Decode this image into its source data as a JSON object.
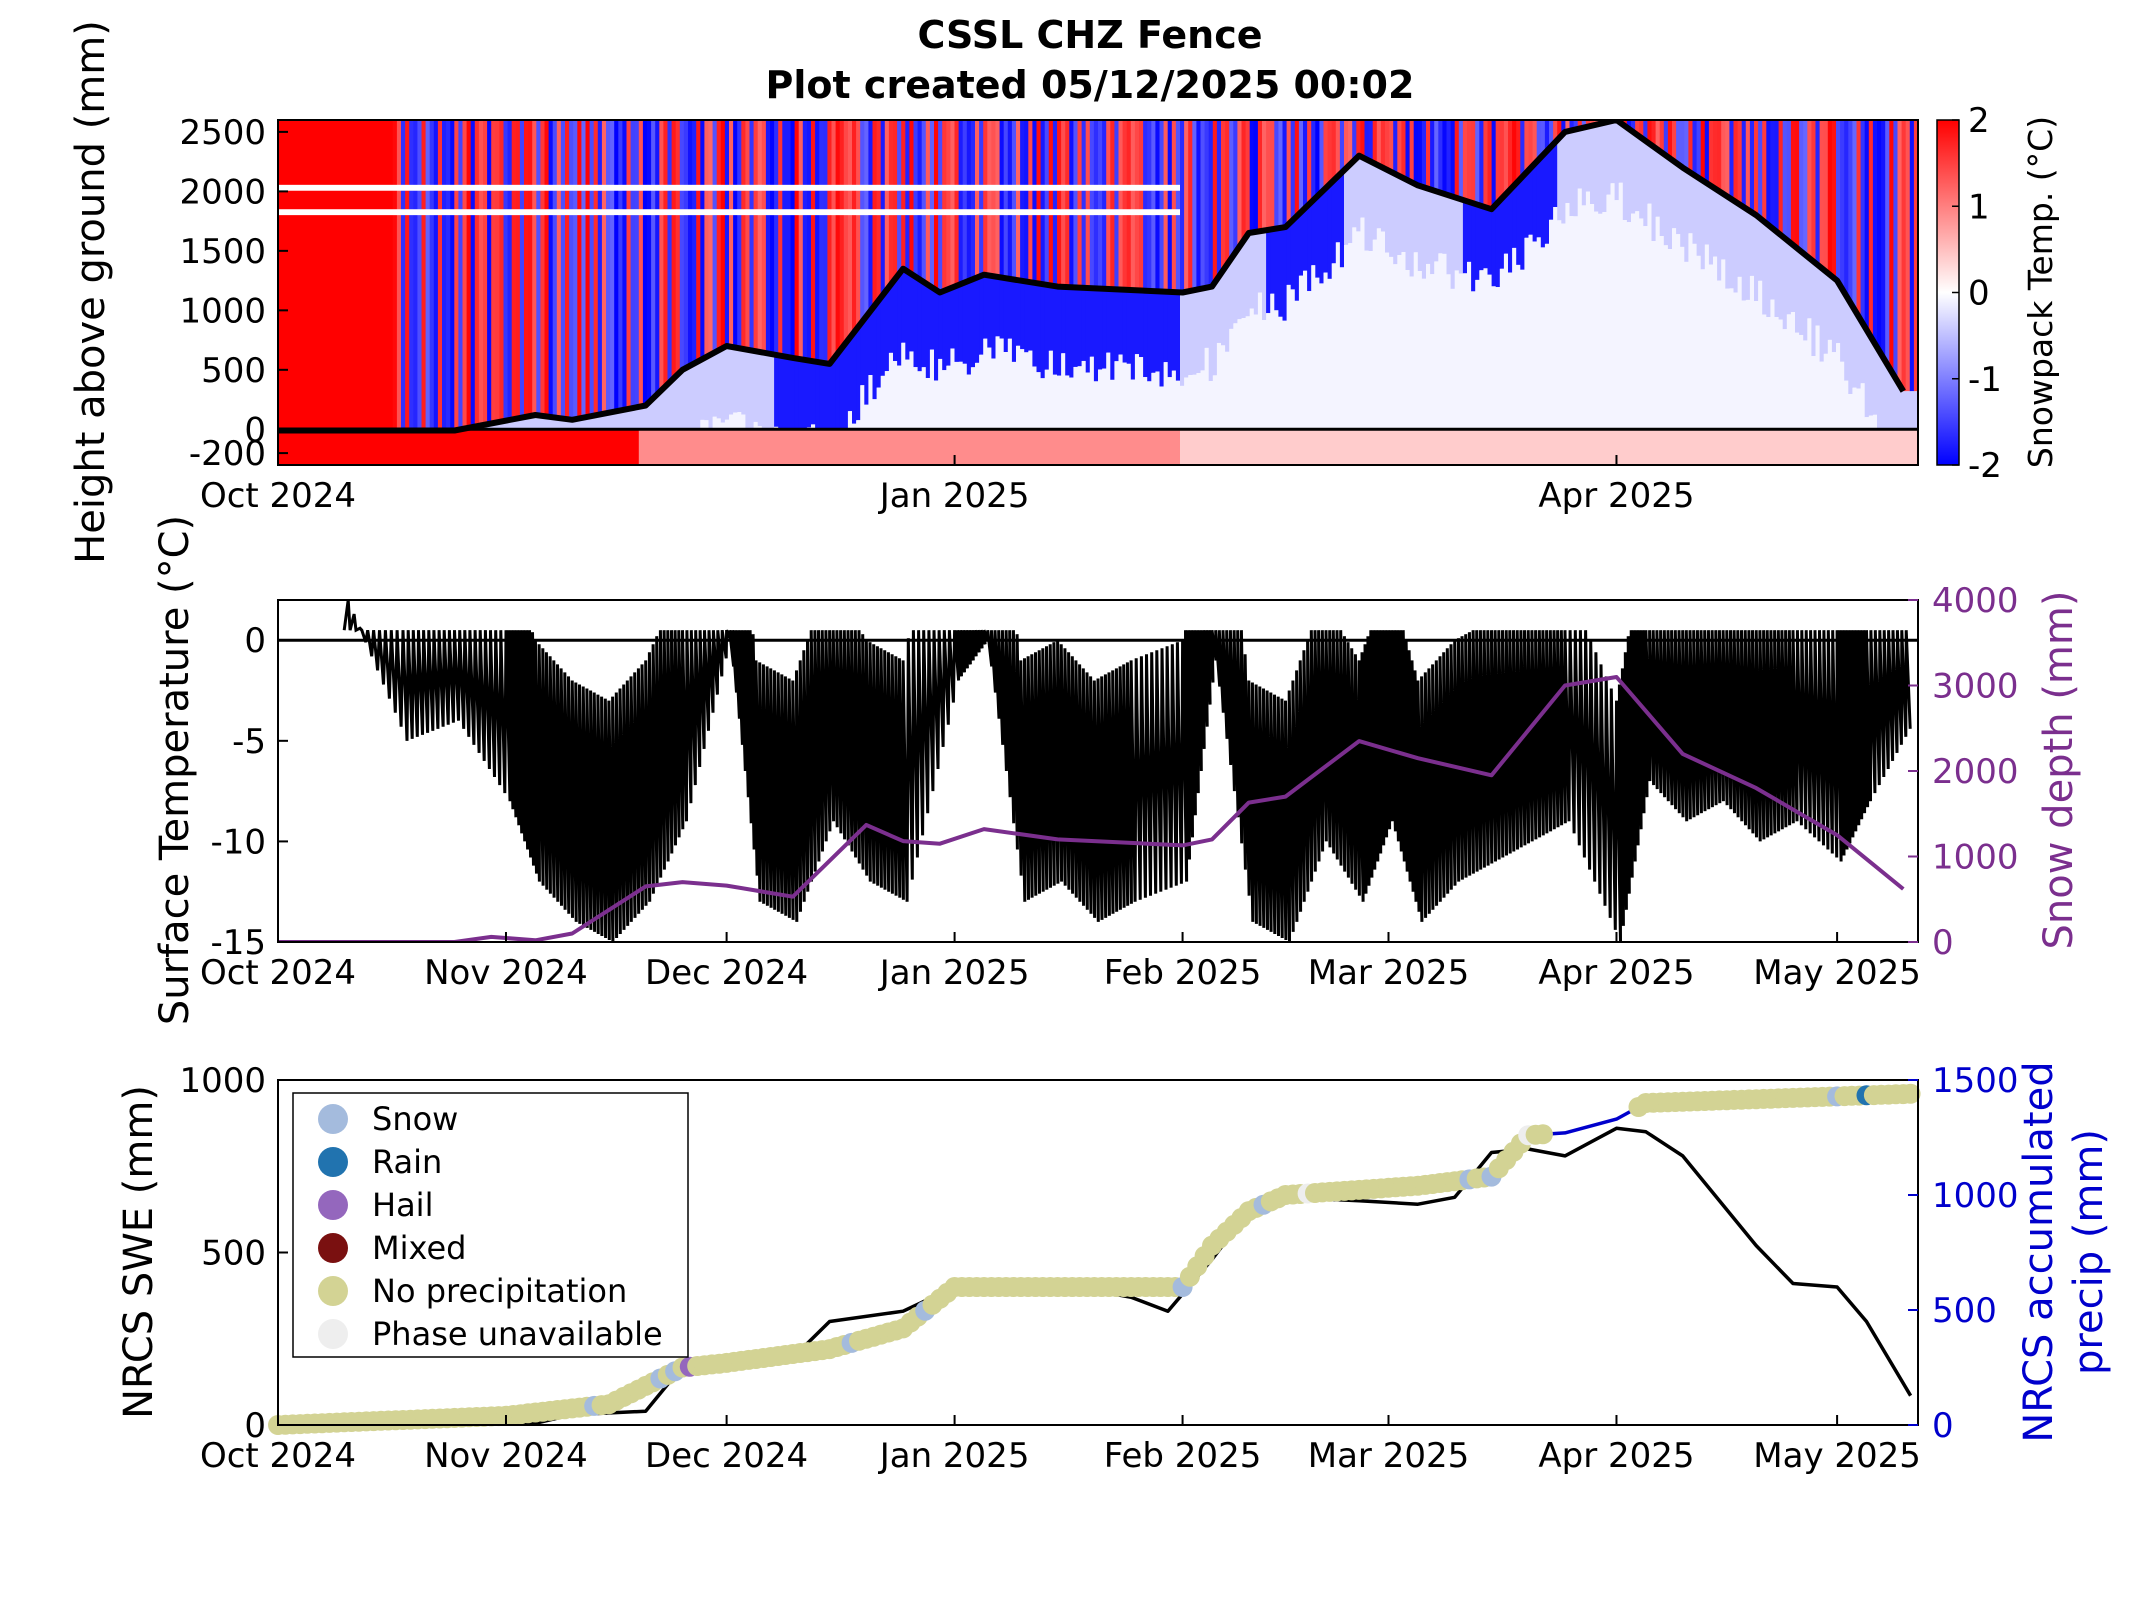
{
  "figure": {
    "title_line1": "CSSL CHZ Fence",
    "title_line2": "Plot created 05/12/2025 00:02"
  },
  "chart_data": [
    {
      "type": "heatmap",
      "name": "snowpack-temperature-profile",
      "ylabel": "Height above ground (mm)",
      "colorbar_label": "Snowpack Temp. (°C)",
      "colorbar_ticks": [
        2,
        1,
        0,
        -1,
        -2
      ],
      "clim": [
        -2,
        2
      ],
      "colors": {
        "warm": "#ff0000",
        "neutral": "#ffffff",
        "cold": "#0000ff"
      },
      "xlim": [
        "2024-10-01",
        "2025-05-12"
      ],
      "x_ticks": [
        {
          "date": "2024-10-01",
          "label": "Oct 2024"
        },
        {
          "date": "2025-01-01",
          "label": "Jan 2025"
        },
        {
          "date": "2025-04-01",
          "label": "Apr 2025"
        }
      ],
      "ylim": [
        -300,
        2600
      ],
      "y_ticks": [
        {
          "value": 2500,
          "label": "2500"
        },
        {
          "value": 2000,
          "label": "2000"
        },
        {
          "value": 1500,
          "label": "1500"
        },
        {
          "value": 1000,
          "label": "1000"
        },
        {
          "value": 500,
          "label": "500"
        },
        {
          "value": 0,
          "label": "0"
        },
        {
          "value": -200,
          "label": "-200"
        }
      ],
      "snow_depth_line": {
        "color": "#000000",
        "x": [
          "2024-10-01",
          "2024-10-25",
          "2024-11-05",
          "2024-11-10",
          "2024-11-20",
          "2024-11-25",
          "2024-12-01",
          "2024-12-10",
          "2024-12-15",
          "2024-12-25",
          "2024-12-30",
          "2025-01-05",
          "2025-01-15",
          "2025-02-01",
          "2025-02-05",
          "2025-02-10",
          "2025-02-15",
          "2025-02-25",
          "2025-03-05",
          "2025-03-15",
          "2025-03-25",
          "2025-04-01",
          "2025-04-10",
          "2025-04-20",
          "2025-05-01",
          "2025-05-10"
        ],
        "y": [
          -10,
          -10,
          120,
          80,
          200,
          500,
          700,
          600,
          550,
          1350,
          1150,
          1300,
          1200,
          1150,
          1200,
          1650,
          1700,
          2300,
          2050,
          1850,
          2500,
          2600,
          2200,
          1800,
          1250,
          320
        ]
      },
      "zero_line": {
        "value": 0,
        "color": "#000000"
      }
    },
    {
      "type": "line",
      "name": "surface-temperature",
      "ylabel": "Surface Temperature (°C)",
      "y2label": "Snow depth (mm)",
      "xlim": [
        "2024-10-01",
        "2025-05-12"
      ],
      "x_ticks": [
        {
          "date": "2024-10-01",
          "label": "Oct 2024"
        },
        {
          "date": "2024-11-01",
          "label": "Nov 2024"
        },
        {
          "date": "2024-12-01",
          "label": "Dec 2024"
        },
        {
          "date": "2025-01-01",
          "label": "Jan 2025"
        },
        {
          "date": "2025-02-01",
          "label": "Feb 2025"
        },
        {
          "date": "2025-03-01",
          "label": "Mar 2025"
        },
        {
          "date": "2025-04-01",
          "label": "Apr 2025"
        },
        {
          "date": "2025-05-01",
          "label": "May 2025"
        }
      ],
      "ylim": [
        -15,
        2
      ],
      "y_ticks": [
        {
          "value": 0,
          "label": "0"
        },
        {
          "value": -5,
          "label": "-5"
        },
        {
          "value": -10,
          "label": "-10"
        },
        {
          "value": -15,
          "label": "-15"
        }
      ],
      "y2lim": [
        0,
        4000
      ],
      "y2_ticks": [
        {
          "value": 4000,
          "label": "4000"
        },
        {
          "value": 3000,
          "label": "3000"
        },
        {
          "value": 2000,
          "label": "2000"
        },
        {
          "value": 1000,
          "label": "1000"
        },
        {
          "value": 0,
          "label": "0"
        }
      ],
      "y2_color": "#7b2f8e",
      "series": [
        {
          "axis": "left",
          "color": "#000000",
          "x": [
            "2024-10-10",
            "2024-10-18",
            "2024-10-25",
            "2024-11-01",
            "2024-11-05",
            "2024-11-10",
            "2024-11-15",
            "2024-11-20",
            "2024-11-25",
            "2024-12-01",
            "2024-12-05",
            "2024-12-10",
            "2024-12-15",
            "2024-12-20",
            "2024-12-25",
            "2025-01-01",
            "2025-01-05",
            "2025-01-10",
            "2025-01-15",
            "2025-01-20",
            "2025-01-25",
            "2025-02-01",
            "2025-02-05",
            "2025-02-10",
            "2025-02-15",
            "2025-02-20",
            "2025-02-25",
            "2025-03-01",
            "2025-03-05",
            "2025-03-10",
            "2025-03-15",
            "2025-03-20",
            "2025-03-25",
            "2025-04-01",
            "2025-04-05",
            "2025-04-10",
            "2025-04-15",
            "2025-04-20",
            "2025-04-25",
            "2025-05-01",
            "2025-05-05",
            "2025-05-11"
          ],
          "y": [
            2,
            -5,
            -4,
            -8,
            -12,
            -14,
            -15,
            -13,
            -9,
            0,
            -13,
            -14,
            -9,
            -12,
            -13,
            -2,
            0,
            -13,
            -12,
            -14,
            -13,
            -12,
            -1,
            -14,
            -15,
            -10,
            -13,
            -9,
            -14,
            -12,
            -11,
            -10,
            -9,
            -15,
            -7,
            -9,
            -8,
            -10,
            -9,
            -11,
            -8,
            -4
          ]
        },
        {
          "axis": "right",
          "color": "#7b2f8e",
          "x": [
            "2024-10-01",
            "2024-10-25",
            "2024-10-30",
            "2024-11-05",
            "2024-11-10",
            "2024-11-20",
            "2024-11-25",
            "2024-12-01",
            "2024-12-10",
            "2024-12-20",
            "2024-12-25",
            "2024-12-30",
            "2025-01-05",
            "2025-01-15",
            "2025-02-01",
            "2025-02-05",
            "2025-02-10",
            "2025-02-15",
            "2025-02-25",
            "2025-03-05",
            "2025-03-15",
            "2025-03-25",
            "2025-04-01",
            "2025-04-10",
            "2025-04-20",
            "2025-05-01",
            "2025-05-10"
          ],
          "y": [
            0,
            0,
            60,
            20,
            100,
            650,
            700,
            660,
            530,
            1370,
            1180,
            1150,
            1320,
            1200,
            1130,
            1200,
            1630,
            1700,
            2350,
            2150,
            1950,
            3000,
            3100,
            2200,
            1800,
            1250,
            620
          ]
        }
      ],
      "zero_line": {
        "value": 0,
        "color": "#000000"
      }
    },
    {
      "type": "scatter",
      "name": "nrcs-swe-precip",
      "ylabel": "NRCS SWE (mm)",
      "y2label_line1": "NRCS accumulated",
      "y2label_line2": "precip (mm)",
      "xlim": [
        "2024-10-01",
        "2025-05-12"
      ],
      "x_ticks": [
        {
          "date": "2024-10-01",
          "label": "Oct 2024"
        },
        {
          "date": "2024-11-01",
          "label": "Nov 2024"
        },
        {
          "date": "2024-12-01",
          "label": "Dec 2024"
        },
        {
          "date": "2025-01-01",
          "label": "Jan 2025"
        },
        {
          "date": "2025-02-01",
          "label": "Feb 2025"
        },
        {
          "date": "2025-03-01",
          "label": "Mar 2025"
        },
        {
          "date": "2025-04-01",
          "label": "Apr 2025"
        },
        {
          "date": "2025-05-01",
          "label": "May 2025"
        }
      ],
      "ylim": [
        0,
        1000
      ],
      "y_ticks": [
        {
          "value": 1000,
          "label": "1000"
        },
        {
          "value": 500,
          "label": "500"
        },
        {
          "value": 0,
          "label": "0"
        }
      ],
      "y2lim": [
        0,
        1500
      ],
      "y2_ticks": [
        {
          "value": 1500,
          "label": "1500"
        },
        {
          "value": 1000,
          "label": "1000"
        },
        {
          "value": 500,
          "label": "500"
        },
        {
          "value": 0,
          "label": "0"
        }
      ],
      "y2_color": "#0000cc",
      "swe_line": {
        "color": "#000000",
        "x": [
          "2024-10-01",
          "2024-10-20",
          "2024-11-05",
          "2024-11-10",
          "2024-11-20",
          "2024-11-25",
          "2024-12-01",
          "2024-12-10",
          "2024-12-15",
          "2024-12-25",
          "2025-01-01",
          "2025-01-10",
          "2025-01-20",
          "2025-01-25",
          "2025-01-30",
          "2025-02-05",
          "2025-02-10",
          "2025-02-15",
          "2025-02-25",
          "2025-03-05",
          "2025-03-10",
          "2025-03-15",
          "2025-03-20",
          "2025-03-25",
          "2025-04-01",
          "2025-04-05",
          "2025-04-10",
          "2025-04-20",
          "2025-04-25",
          "2025-05-01",
          "2025-05-05",
          "2025-05-11"
        ],
        "y": [
          0,
          0,
          5,
          30,
          40,
          170,
          200,
          195,
          300,
          330,
          400,
          400,
          390,
          370,
          330,
          480,
          620,
          660,
          650,
          640,
          660,
          790,
          800,
          780,
          860,
          850,
          780,
          520,
          410,
          400,
          300,
          85
        ]
      },
      "precip_line": {
        "color": "#0000cc",
        "x": [
          "2024-10-01",
          "2024-11-01",
          "2024-11-15",
          "2024-11-25",
          "2024-12-01",
          "2024-12-15",
          "2024-12-25",
          "2025-01-01",
          "2025-02-01",
          "2025-02-05",
          "2025-02-10",
          "2025-02-15",
          "2025-03-05",
          "2025-03-15",
          "2025-03-20",
          "2025-03-25",
          "2025-04-01",
          "2025-04-05",
          "2025-05-11"
        ],
        "y": [
          0,
          40,
          90,
          250,
          270,
          330,
          420,
          600,
          600,
          780,
          930,
          1000,
          1040,
          1080,
          1260,
          1270,
          1330,
          1400,
          1440
        ]
      },
      "legend": {
        "placement": "upper-left",
        "entries": [
          {
            "label": "Snow",
            "color": "#a4bbdd"
          },
          {
            "label": "Rain",
            "color": "#2173af"
          },
          {
            "label": "Hail",
            "color": "#9467bd"
          },
          {
            "label": "Mixed",
            "color": "#7a1010"
          },
          {
            "label": "No precipitation",
            "color": "#d3d394"
          },
          {
            "label": "Phase unavailable",
            "color": "#eeeeee"
          }
        ]
      },
      "phase_points": {
        "Snow": [
          "2024-11-13",
          "2024-11-22",
          "2024-11-24",
          "2024-12-18",
          "2024-12-28",
          "2025-02-01",
          "2025-02-12",
          "2025-03-12",
          "2025-03-15",
          "2025-05-01"
        ],
        "Rain": [
          "2025-05-05"
        ],
        "Hail": [
          "2024-11-26"
        ],
        "Mixed": [],
        "Phase unavailable": [
          "2025-02-18",
          "2025-03-20"
        ]
      }
    }
  ]
}
